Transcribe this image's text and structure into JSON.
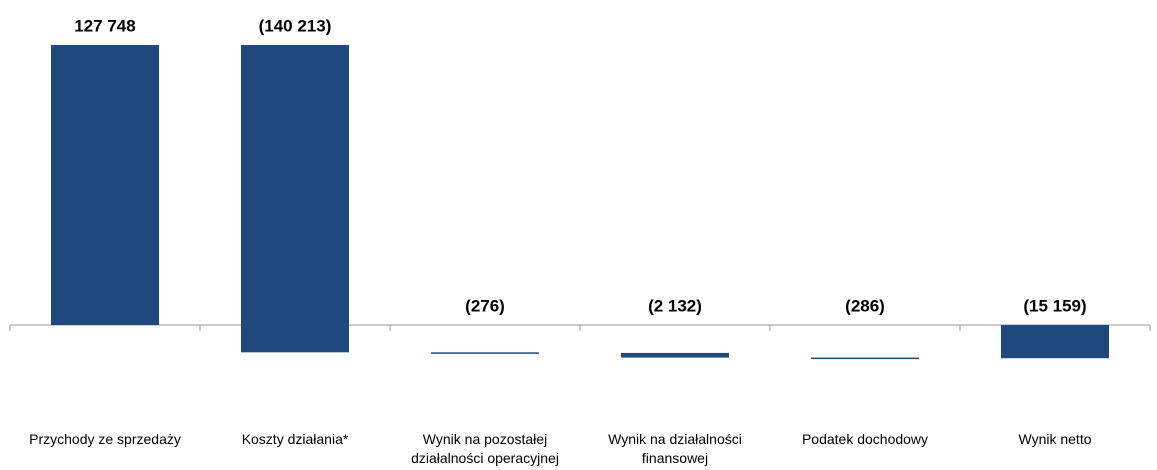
{
  "chart_data": {
    "type": "waterfall",
    "categories": [
      "Przychody ze sprzedaży",
      "Koszty działania*",
      "Wynik na pozostałej działalności operacyjnej",
      "Wynik na działalności finansowej",
      "Podatek dochodowy",
      "Wynik netto"
    ],
    "values": [
      127748,
      -140213,
      -276,
      -2132,
      -286,
      -15159
    ],
    "value_labels": [
      "127 748",
      "(140 213)",
      "(276)",
      "(2 132)",
      "(286)",
      "(15 159)"
    ],
    "color": "#1f497d"
  }
}
